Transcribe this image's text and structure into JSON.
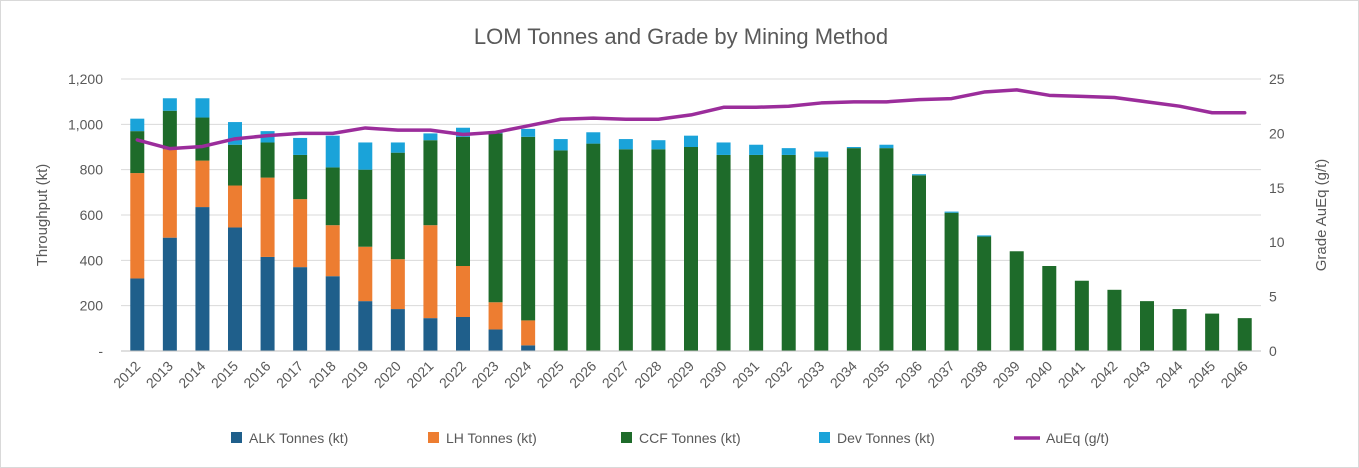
{
  "chart_data": {
    "type": "bar",
    "stacked": true,
    "title": "LOM Tonnes and Grade by Mining Method",
    "ylabel": "Throughput (kt)",
    "y2label": "Grade AuEq (g/t)",
    "ylim": [
      0,
      1200
    ],
    "y2lim": [
      0,
      25
    ],
    "y_ticks": [
      "-",
      "200",
      "400",
      "600",
      "800",
      "1,000",
      "1,200"
    ],
    "y2_ticks": [
      "0",
      "5",
      "10",
      "15",
      "20",
      "25"
    ],
    "categories": [
      "2012",
      "2013",
      "2014",
      "2015",
      "2016",
      "2017",
      "2018",
      "2019",
      "2020",
      "2021",
      "2022",
      "2023",
      "2024",
      "2025",
      "2026",
      "2027",
      "2028",
      "2029",
      "2030",
      "2031",
      "2032",
      "2033",
      "2034",
      "2035",
      "2036",
      "2037",
      "2038",
      "2039",
      "2040",
      "2041",
      "2042",
      "2043",
      "2044",
      "2045",
      "2046"
    ],
    "series": [
      {
        "name": "ALK Tonnes (kt)",
        "color": "#1f5f8b",
        "values": [
          320,
          500,
          635,
          545,
          415,
          370,
          330,
          220,
          185,
          145,
          150,
          95,
          25,
          0,
          0,
          0,
          0,
          0,
          0,
          0,
          0,
          0,
          0,
          0,
          0,
          0,
          0,
          0,
          0,
          0,
          0,
          0,
          0,
          0,
          0
        ]
      },
      {
        "name": "LH Tonnes (kt)",
        "color": "#ed7d31",
        "values": [
          465,
          390,
          205,
          185,
          350,
          300,
          225,
          240,
          220,
          410,
          225,
          120,
          110,
          0,
          0,
          0,
          0,
          0,
          0,
          0,
          0,
          0,
          0,
          0,
          0,
          0,
          0,
          0,
          0,
          0,
          0,
          0,
          0,
          0,
          0
        ]
      },
      {
        "name": "CCF Tonnes (kt)",
        "color": "#1e6b2a",
        "values": [
          185,
          170,
          190,
          180,
          155,
          195,
          255,
          340,
          470,
          375,
          570,
          745,
          810,
          885,
          915,
          890,
          890,
          900,
          865,
          865,
          865,
          855,
          895,
          895,
          775,
          610,
          505,
          440,
          375,
          310,
          270,
          220,
          185,
          165,
          145
        ]
      },
      {
        "name": "Dev Tonnes (kt)",
        "color": "#1aa3d9",
        "values": [
          55,
          55,
          85,
          100,
          50,
          75,
          140,
          120,
          45,
          30,
          40,
          10,
          35,
          50,
          50,
          45,
          40,
          50,
          55,
          45,
          30,
          25,
          5,
          15,
          5,
          5,
          5,
          0,
          0,
          0,
          0,
          0,
          0,
          0,
          0
        ]
      }
    ],
    "line_series": {
      "name": "AuEq (g/t)",
      "color": "#9b2d9b",
      "axis": "secondary",
      "values": [
        19.4,
        18.6,
        18.8,
        19.5,
        19.8,
        20.0,
        20.0,
        20.5,
        20.3,
        20.3,
        19.9,
        20.1,
        20.7,
        21.3,
        21.4,
        21.3,
        21.3,
        21.7,
        22.4,
        22.4,
        22.5,
        22.8,
        22.9,
        22.9,
        23.1,
        23.2,
        23.8,
        24.0,
        23.5,
        23.4,
        23.3,
        22.9,
        22.5,
        21.9,
        21.9
      ]
    },
    "legend_position": "bottom",
    "grid": "horizontal"
  }
}
